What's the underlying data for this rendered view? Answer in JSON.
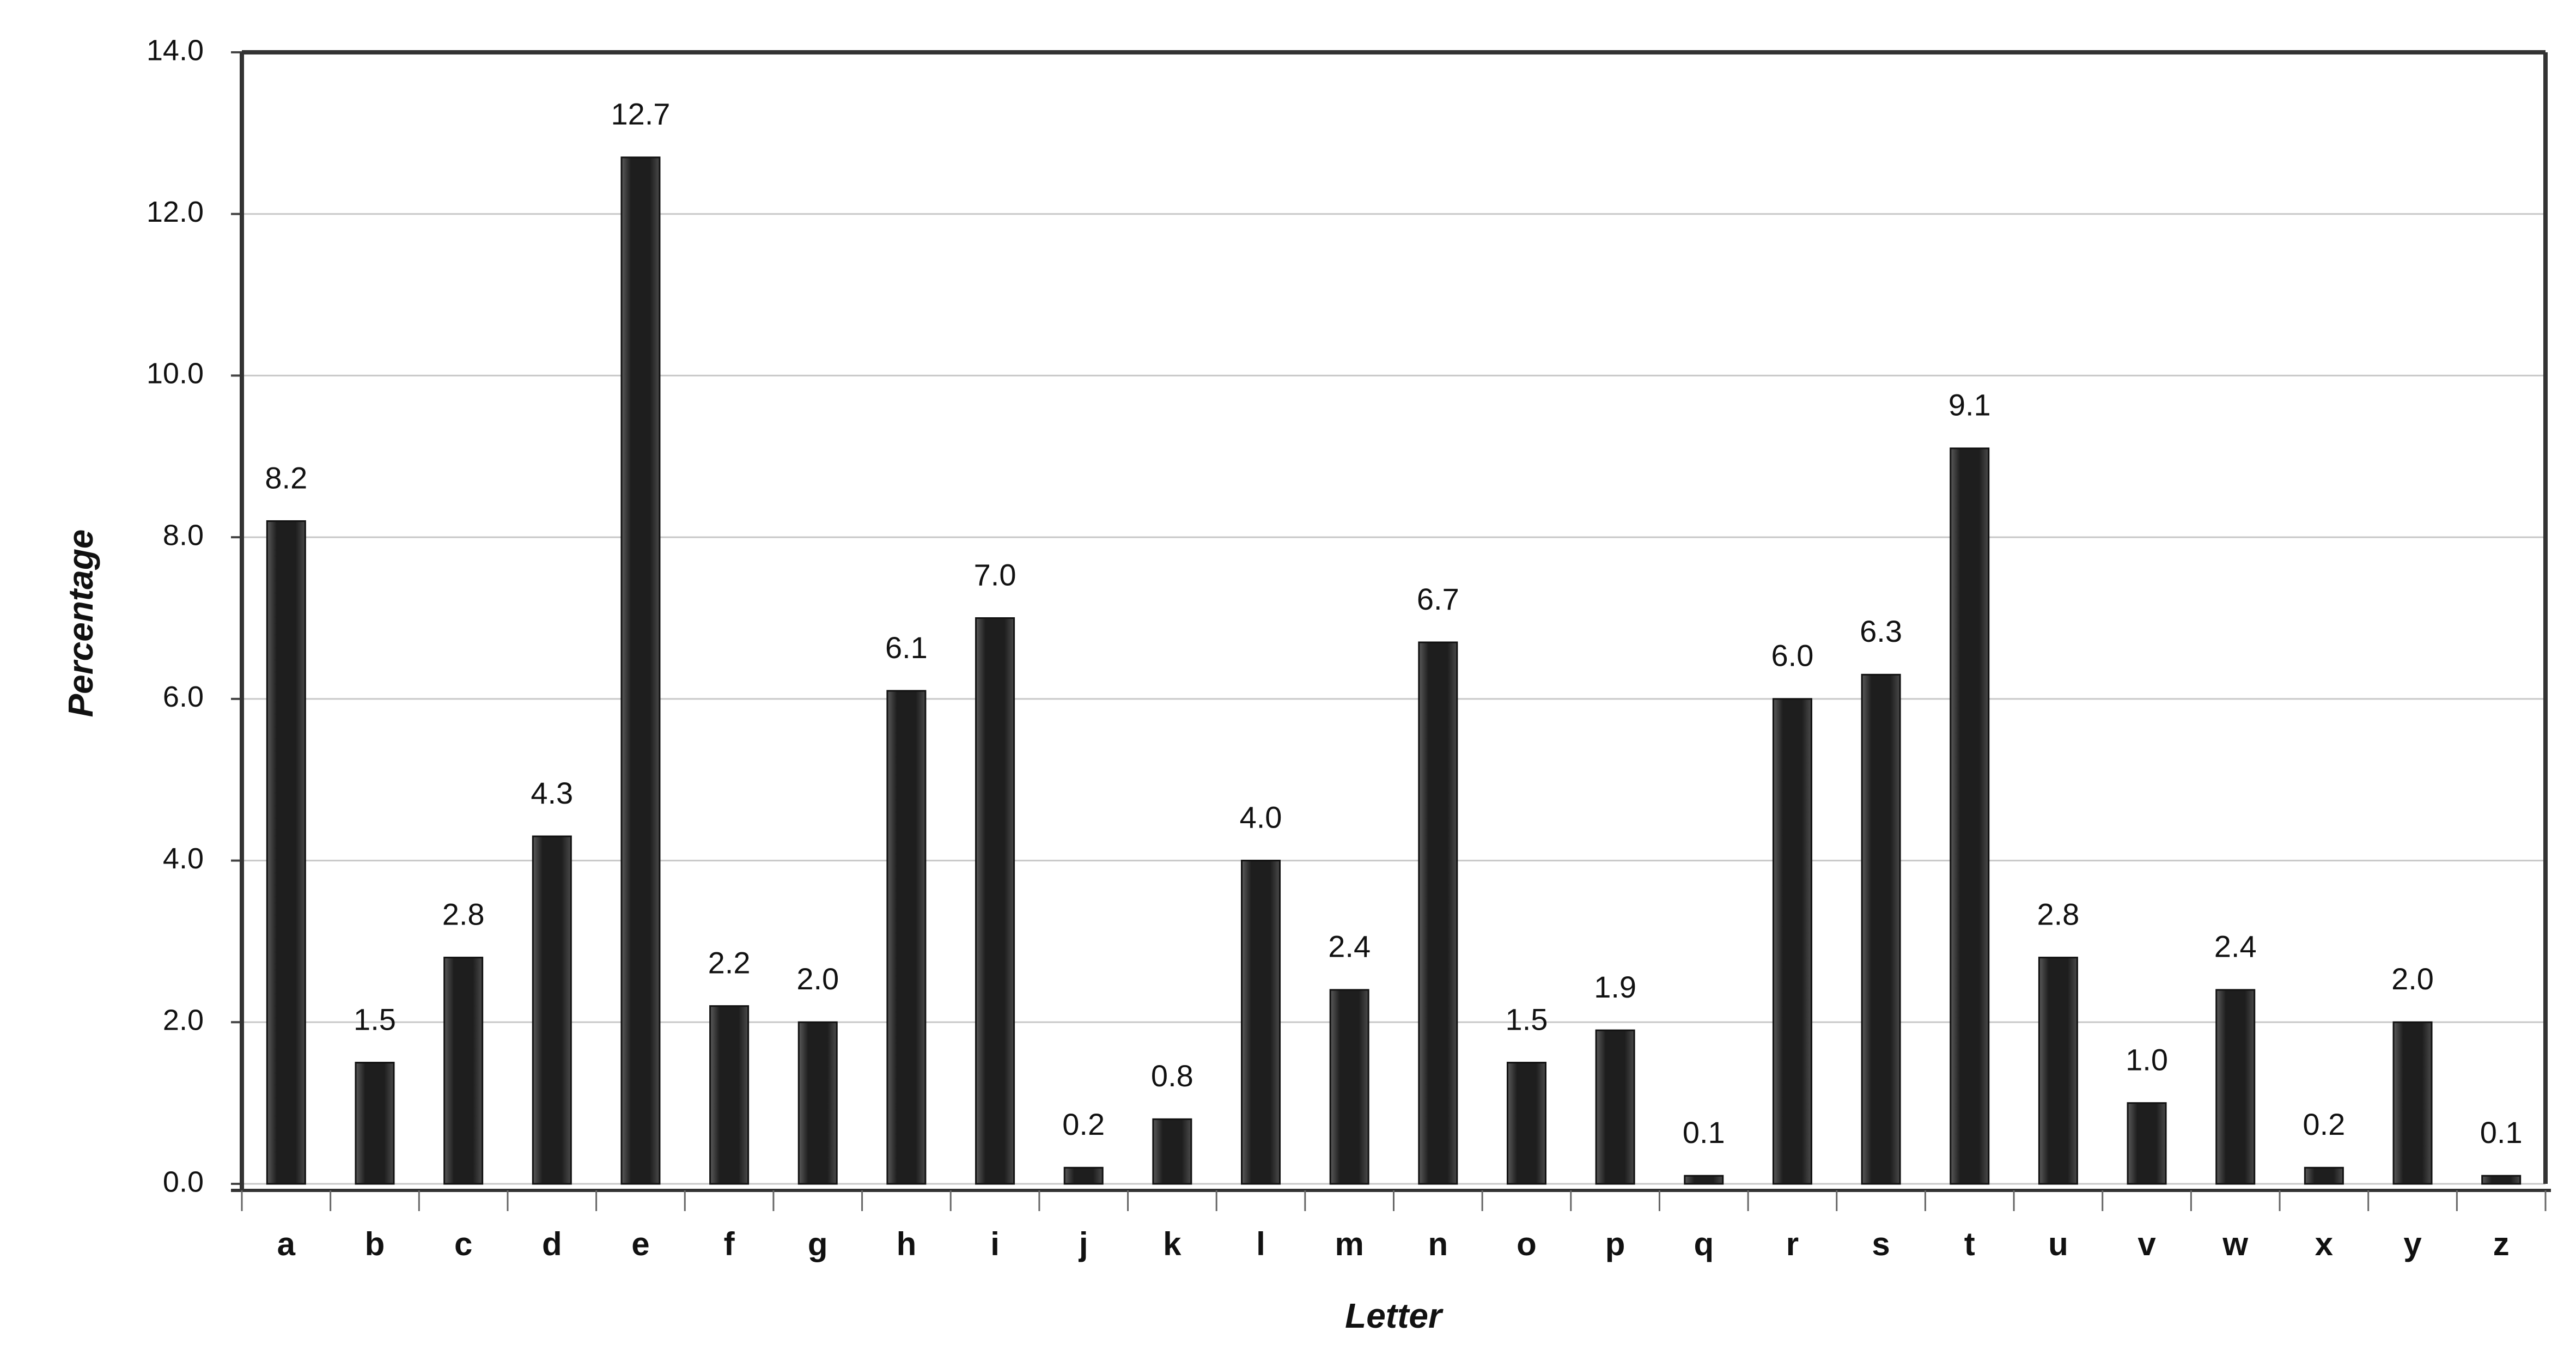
{
  "chart_data": {
    "type": "bar",
    "x_label": "Letter",
    "y_label": "Percentage",
    "categories": [
      "a",
      "b",
      "c",
      "d",
      "e",
      "f",
      "g",
      "h",
      "i",
      "j",
      "k",
      "l",
      "m",
      "n",
      "o",
      "p",
      "q",
      "r",
      "s",
      "t",
      "u",
      "v",
      "w",
      "x",
      "y",
      "z"
    ],
    "values": [
      8.2,
      1.5,
      2.8,
      4.3,
      12.7,
      2.2,
      2.0,
      6.1,
      7.0,
      0.2,
      0.8,
      4.0,
      2.4,
      6.7,
      1.5,
      1.9,
      0.1,
      6.0,
      6.3,
      9.1,
      2.8,
      1.0,
      2.4,
      0.2,
      2.0,
      0.1
    ],
    "value_labels": [
      "8.2",
      "1.5",
      "2.8",
      "4.3",
      "12.7",
      "2.2",
      "2.0",
      "6.1",
      "7.0",
      "0.2",
      "0.8",
      "4.0",
      "2.4",
      "6.7",
      "1.5",
      "1.9",
      "0.1",
      "6.0",
      "6.3",
      "9.1",
      "2.8",
      "1.0",
      "2.4",
      "0.2",
      "2.0",
      "0.1"
    ],
    "color": "#1e1e1e",
    "ylim": [
      0,
      14
    ],
    "yticks": [
      {
        "value": 0,
        "label": "0.0"
      },
      {
        "value": 2,
        "label": "2.0"
      },
      {
        "value": 4,
        "label": "4.0"
      },
      {
        "value": 6,
        "label": "6.0"
      },
      {
        "value": 8,
        "label": "8.0"
      },
      {
        "value": 10,
        "label": "10.0"
      },
      {
        "value": 12,
        "label": "12.0"
      },
      {
        "value": 14,
        "label": "14.0"
      }
    ],
    "grid": true
  }
}
